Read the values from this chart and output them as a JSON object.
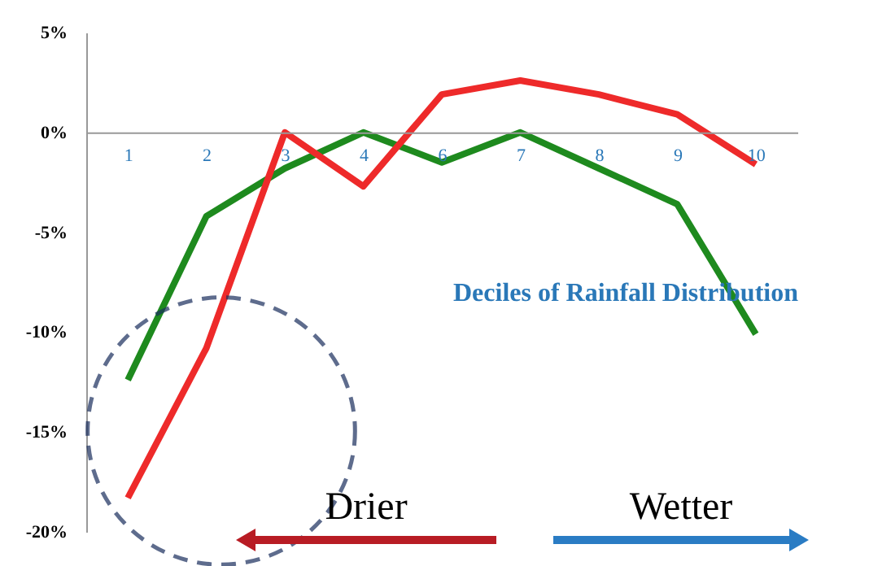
{
  "chart_data": {
    "type": "line",
    "xlabel": "Deciles of Rainfall Distribution",
    "categories": [
      "1",
      "2",
      "3",
      "4",
      "6",
      "7",
      "8",
      "9",
      "10"
    ],
    "series": [
      {
        "color": "#1e8a1e",
        "values": [
          -12.4,
          -4.2,
          -1.8,
          0,
          -1.5,
          0,
          -1.8,
          -3.6,
          -10.1
        ]
      },
      {
        "color": "#ee2a2a",
        "values": [
          -18.3,
          -10.8,
          0,
          -2.7,
          1.9,
          2.6,
          1.9,
          0.9,
          -1.6
        ]
      }
    ],
    "ylim": [
      -20,
      5
    ],
    "yticks": [
      {
        "value": 5,
        "label": "5%"
      },
      {
        "value": 0,
        "label": "0%"
      },
      {
        "value": -5,
        "label": "-5%"
      },
      {
        "value": -10,
        "label": "-10%"
      },
      {
        "value": -15,
        "label": "-15%"
      },
      {
        "value": -20,
        "label": "-20%"
      }
    ],
    "annotations": [
      "Drier",
      "Wetter"
    ],
    "grid": false,
    "marker": "none",
    "line_style": "solid"
  }
}
